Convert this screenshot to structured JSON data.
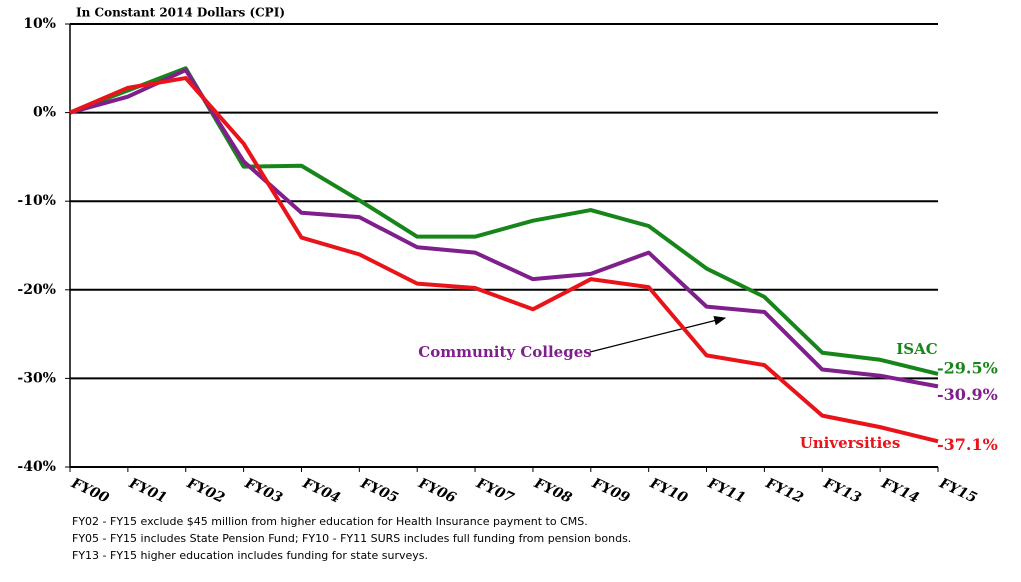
{
  "chart_data": {
    "type": "line",
    "subtitle": "In Constant 2014 Dollars (CPI)",
    "categories": [
      "FY00",
      "FY01",
      "FY02",
      "FY03",
      "FY04",
      "FY05",
      "FY06",
      "FY07",
      "FY08",
      "FY09",
      "FY10",
      "FY11",
      "FY12",
      "FY13",
      "FY14",
      "FY15"
    ],
    "series": [
      {
        "name": "ISAC",
        "color": "#17861a",
        "values": [
          0,
          2.5,
          5.0,
          -6.1,
          -6.0,
          -9.9,
          -14.0,
          -14.0,
          -12.2,
          -11.0,
          -12.8,
          -17.6,
          -20.8,
          -27.1,
          -27.9,
          -29.5
        ],
        "value_labels": [
          null,
          null,
          null,
          null,
          null,
          null,
          null,
          null,
          null,
          null,
          null,
          null,
          null,
          null,
          null,
          "-29.5%"
        ]
      },
      {
        "name": "Community Colleges",
        "color": "#7f1f8c",
        "values": [
          0,
          1.8,
          4.8,
          -5.5,
          -11.3,
          -11.8,
          -15.2,
          -15.8,
          -18.8,
          -18.2,
          -15.8,
          -21.9,
          -22.5,
          -29.0,
          -29.7,
          -30.9
        ],
        "value_labels": [
          null,
          null,
          null,
          null,
          null,
          null,
          null,
          null,
          null,
          null,
          null,
          null,
          null,
          null,
          null,
          "-30.9%"
        ]
      },
      {
        "name": "Universities",
        "color": "#e8141a",
        "values": [
          0,
          2.8,
          3.9,
          -3.5,
          -14.1,
          -16.0,
          -19.3,
          -19.8,
          -22.2,
          -18.8,
          -19.7,
          -27.4,
          -28.5,
          -34.2,
          -35.5,
          -37.1
        ],
        "value_labels": [
          null,
          null,
          null,
          null,
          null,
          null,
          null,
          null,
          null,
          null,
          null,
          null,
          null,
          null,
          null,
          "-37.1%"
        ]
      }
    ],
    "ylim": [
      -40,
      10
    ],
    "yticks": [
      {
        "value": 10,
        "label": "10%"
      },
      {
        "value": 0,
        "label": "0%"
      },
      {
        "value": -10,
        "label": "-10%"
      },
      {
        "value": -20,
        "label": "-20%"
      },
      {
        "value": -30,
        "label": "-30%"
      },
      {
        "value": -40,
        "label": "-40%"
      }
    ],
    "grid": true,
    "notes": [
      "FY02 - FY15 exclude $45 million from higher education for Health Insurance payment to CMS.",
      "FY05 - FY15 includes State Pension Fund; FY10 - FY11 SURS includes full funding from pension bonds.",
      "FY13 - FY15 higher education includes funding for state surveys."
    ]
  }
}
